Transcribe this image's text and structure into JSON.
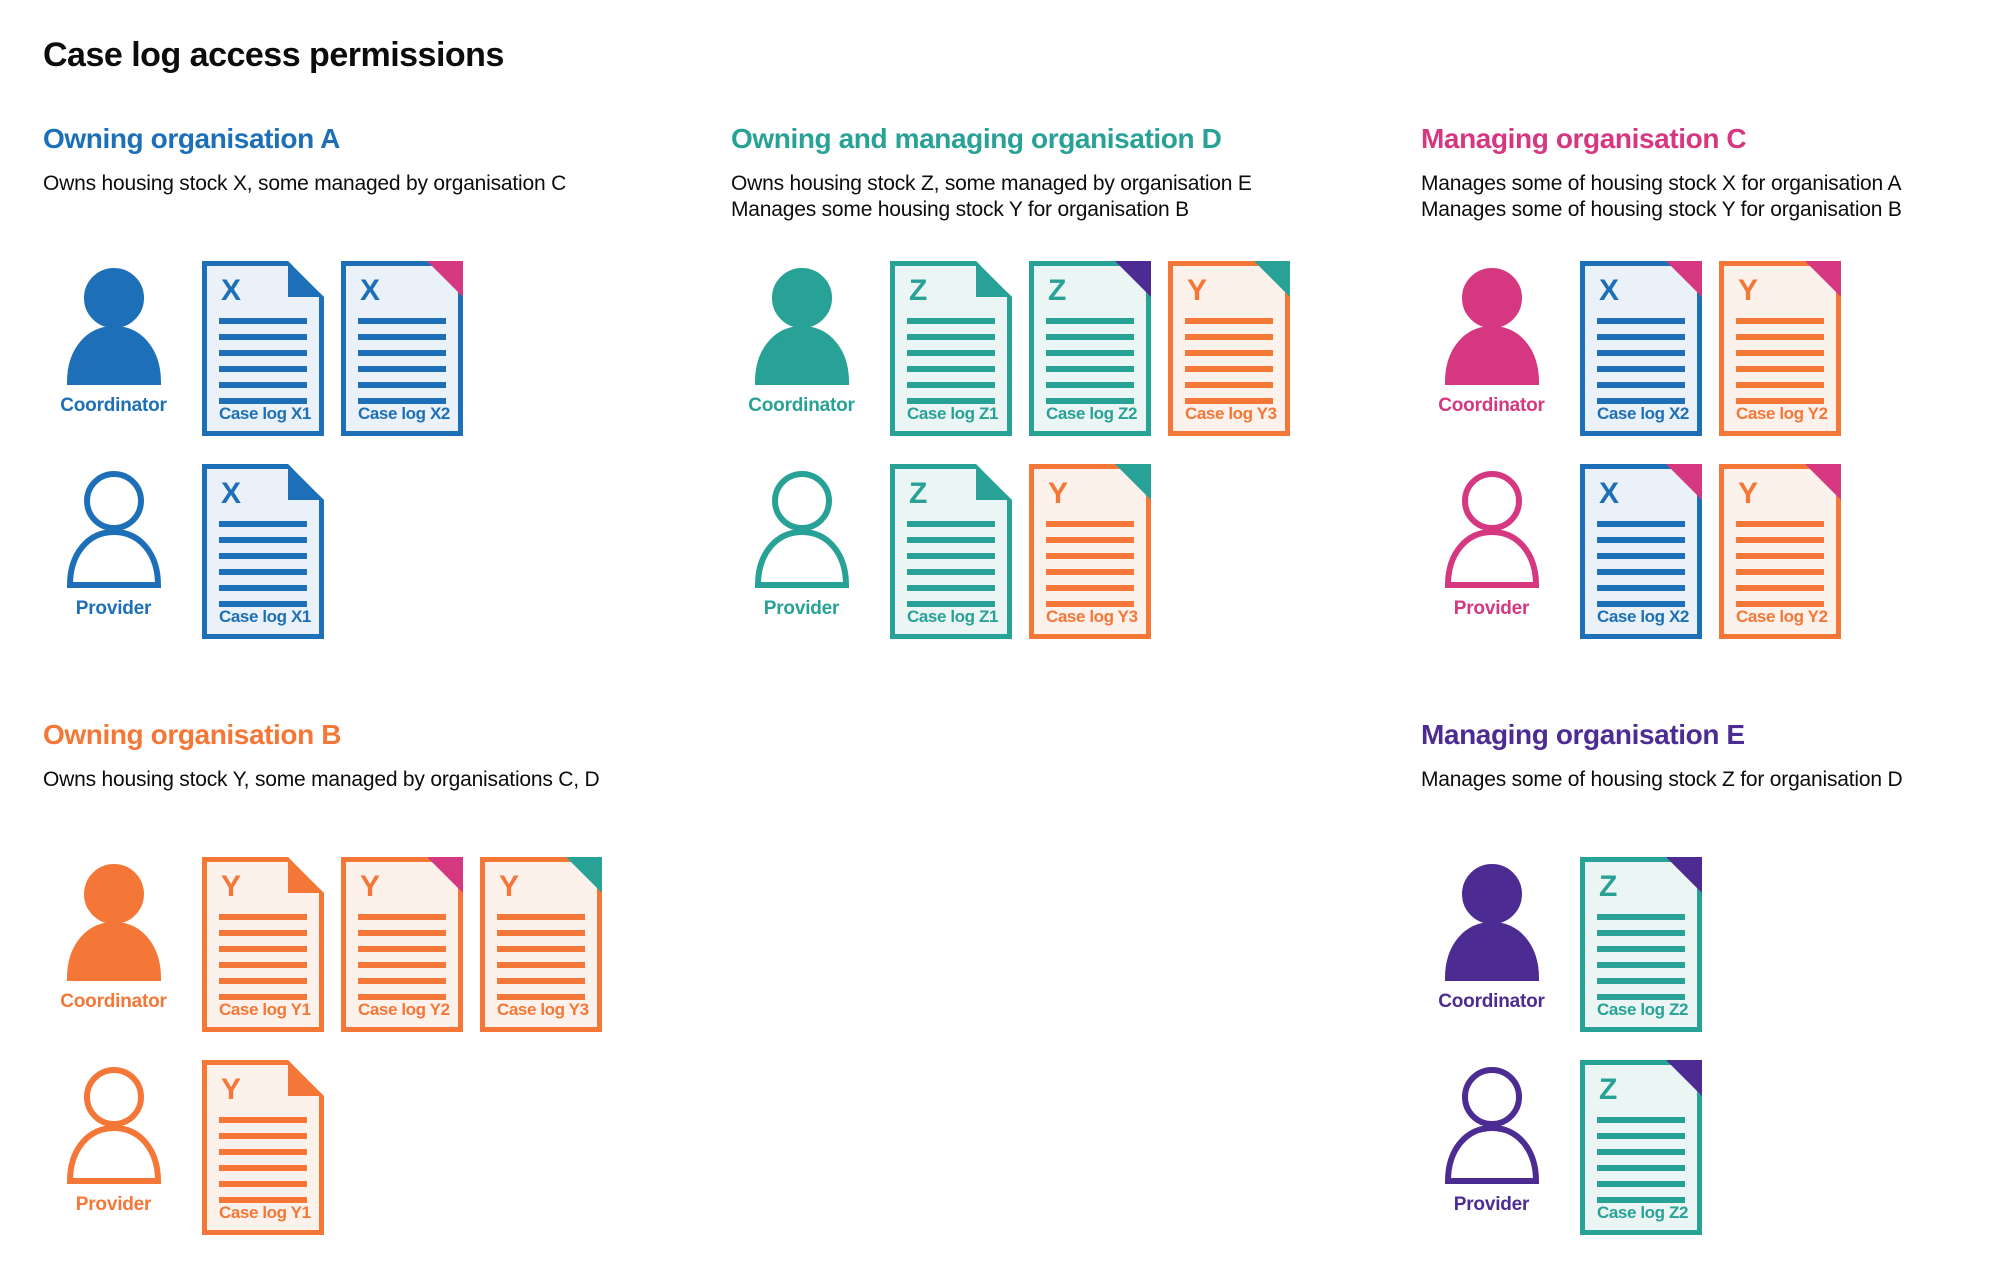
{
  "page": {
    "title": "Case log access permissions"
  },
  "colors": {
    "blue": "#1d70b8",
    "teal": "#28a197",
    "pink": "#d53880",
    "orange": "#f47738",
    "purple": "#4c2c92",
    "text": "#0b0c0c"
  },
  "doc_fills": {
    "blue": "#eaf1f8",
    "teal": "#ebf6f4",
    "orange": "#fdf2eb"
  },
  "organisations": [
    {
      "id": "owning-organisation-a",
      "name": "Owning organisation A",
      "color": "blue",
      "grid_area": "r1c1",
      "description_lines": [
        "Owns housing stock X, some managed by organisation C"
      ],
      "rows": [
        {
          "role": "Coordinator",
          "person_style": "filled",
          "docs": [
            {
              "letter": "X",
              "label": "Case log X1",
              "doc_color": "blue",
              "fold_color": "blue",
              "fold_style": "dogear"
            },
            {
              "letter": "X",
              "label": "Case log X2",
              "doc_color": "blue",
              "fold_color": "pink",
              "fold_style": "corner"
            }
          ]
        },
        {
          "role": "Provider",
          "person_style": "outline",
          "docs": [
            {
              "letter": "X",
              "label": "Case log X1",
              "doc_color": "blue",
              "fold_color": "blue",
              "fold_style": "dogear"
            }
          ]
        }
      ]
    },
    {
      "id": "owning-and-managing-organisation-d",
      "name": "Owning and managing organisation D",
      "color": "teal",
      "grid_area": "r1c2",
      "description_lines": [
        "Owns housing stock Z, some managed by organisation E",
        "Manages some housing stock Y for organisation B"
      ],
      "rows": [
        {
          "role": "Coordinator",
          "person_style": "filled",
          "docs": [
            {
              "letter": "Z",
              "label": "Case log Z1",
              "doc_color": "teal",
              "fold_color": "teal",
              "fold_style": "dogear"
            },
            {
              "letter": "Z",
              "label": "Case log Z2",
              "doc_color": "teal",
              "fold_color": "purple",
              "fold_style": "corner"
            },
            {
              "letter": "Y",
              "label": "Case log Y3",
              "doc_color": "orange",
              "fold_color": "teal",
              "fold_style": "corner"
            }
          ]
        },
        {
          "role": "Provider",
          "person_style": "outline",
          "docs": [
            {
              "letter": "Z",
              "label": "Case log Z1",
              "doc_color": "teal",
              "fold_color": "teal",
              "fold_style": "dogear"
            },
            {
              "letter": "Y",
              "label": "Case log Y3",
              "doc_color": "orange",
              "fold_color": "teal",
              "fold_style": "corner"
            }
          ]
        }
      ]
    },
    {
      "id": "managing-organisation-c",
      "name": "Managing organisation C",
      "color": "pink",
      "grid_area": "r1c3",
      "description_lines": [
        "Manages some of housing stock X for organisation A",
        "Manages some of housing stock Y for organisation B"
      ],
      "rows": [
        {
          "role": "Coordinator",
          "person_style": "filled",
          "docs": [
            {
              "letter": "X",
              "label": "Case log X2",
              "doc_color": "blue",
              "fold_color": "pink",
              "fold_style": "corner"
            },
            {
              "letter": "Y",
              "label": "Case log Y2",
              "doc_color": "orange",
              "fold_color": "pink",
              "fold_style": "corner"
            }
          ]
        },
        {
          "role": "Provider",
          "person_style": "outline",
          "docs": [
            {
              "letter": "X",
              "label": "Case log X2",
              "doc_color": "blue",
              "fold_color": "pink",
              "fold_style": "corner"
            },
            {
              "letter": "Y",
              "label": "Case log Y2",
              "doc_color": "orange",
              "fold_color": "pink",
              "fold_style": "corner"
            }
          ]
        }
      ]
    },
    {
      "id": "owning-organisation-b",
      "name": "Owning organisation B",
      "color": "orange",
      "grid_area": "r2c1",
      "description_lines": [
        "Owns housing stock Y, some managed by organisations C, D"
      ],
      "rows": [
        {
          "role": "Coordinator",
          "person_style": "filled",
          "docs": [
            {
              "letter": "Y",
              "label": "Case log Y1",
              "doc_color": "orange",
              "fold_color": "orange",
              "fold_style": "dogear"
            },
            {
              "letter": "Y",
              "label": "Case log Y2",
              "doc_color": "orange",
              "fold_color": "pink",
              "fold_style": "corner"
            },
            {
              "letter": "Y",
              "label": "Case log Y3",
              "doc_color": "orange",
              "fold_color": "teal",
              "fold_style": "corner"
            }
          ]
        },
        {
          "role": "Provider",
          "person_style": "outline",
          "docs": [
            {
              "letter": "Y",
              "label": "Case log Y1",
              "doc_color": "orange",
              "fold_color": "orange",
              "fold_style": "dogear"
            }
          ]
        }
      ]
    },
    {
      "id": "managing-organisation-e",
      "name": "Managing organisation E",
      "color": "purple",
      "grid_area": "r2c3",
      "description_lines": [
        "Manages some of housing stock Z for organisation D"
      ],
      "rows": [
        {
          "role": "Coordinator",
          "person_style": "filled",
          "docs": [
            {
              "letter": "Z",
              "label": "Case log Z2",
              "doc_color": "teal",
              "fold_color": "purple",
              "fold_style": "corner"
            }
          ]
        },
        {
          "role": "Provider",
          "person_style": "outline",
          "docs": [
            {
              "letter": "Z",
              "label": "Case log Z2",
              "doc_color": "teal",
              "fold_color": "purple",
              "fold_style": "corner"
            }
          ]
        }
      ]
    }
  ]
}
